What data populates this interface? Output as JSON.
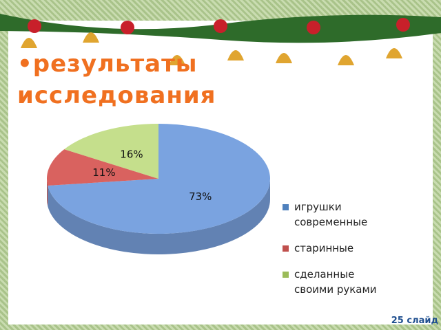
{
  "header": {
    "title": "результаты исследования"
  },
  "chart_data": {
    "type": "pie",
    "categories": [
      "игрушки современные",
      "старинные",
      "сделанные своими руками"
    ],
    "values": [
      73,
      11,
      16
    ],
    "value_labels": [
      "73%",
      "11%",
      "16%"
    ],
    "colors": [
      "#7aa3e0",
      "#d9625f",
      "#c5df8c"
    ],
    "legend_colors": [
      "#4f81bd",
      "#c0504d",
      "#9bbb59"
    ]
  },
  "footer": {
    "slide": "25 слайд"
  }
}
